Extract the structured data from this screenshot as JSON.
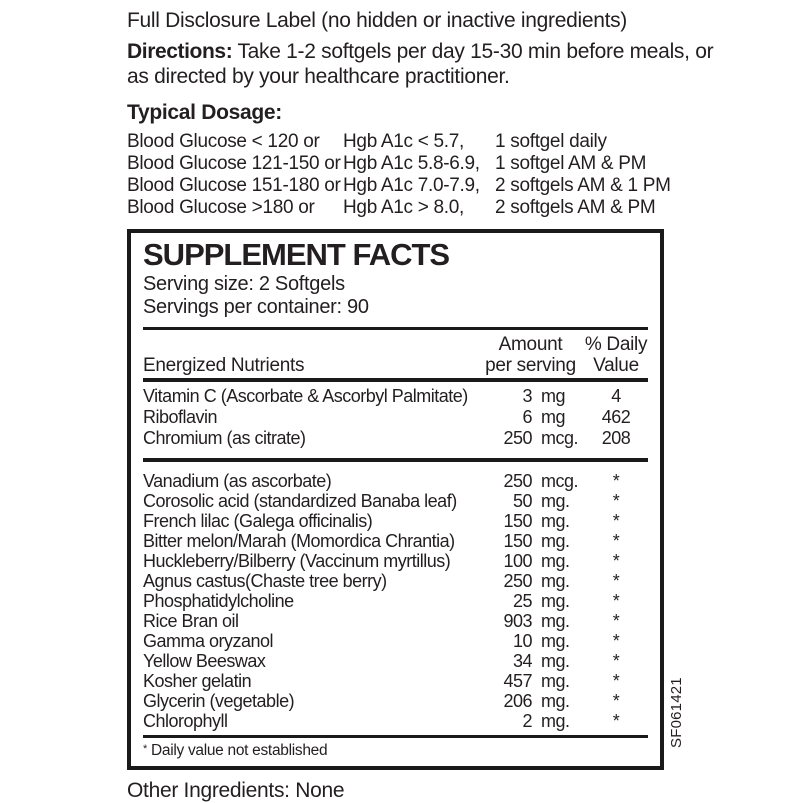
{
  "page": {
    "intro_line": "Full Disclosure Label (no hidden or inactive ingredients)",
    "directions_label": "Directions:",
    "directions_text": " Take 1-2 softgels per day 15-30 min before meals, or as directed by your healthcare practitioner.",
    "typical_dosage_label": "Typical Dosage:",
    "other_ingredients": "Other Ingredients: None"
  },
  "dosage_table": {
    "rows": [
      {
        "glucose": "Blood Glucose < 120 or",
        "hgb": "Hgb A1c < 5.7,",
        "dose": "1 softgel daily"
      },
      {
        "glucose": "Blood Glucose 121-150 or",
        "hgb": "Hgb A1c 5.8-6.9,",
        "dose": "1 softgel AM & PM"
      },
      {
        "glucose": "Blood Glucose 151-180 or",
        "hgb": "Hgb A1c 7.0-7.9,",
        "dose": "2 softgels AM & 1 PM"
      },
      {
        "glucose": "Blood Glucose >180 or",
        "hgb": "Hgb A1c > 8.0,",
        "dose": "2 softgels AM & PM"
      }
    ]
  },
  "supplement_facts": {
    "title": "SUPPLEMENT FACTS",
    "serving_size": "Serving size: 2 Softgels",
    "servings_per_container": "Servings per container:  90",
    "columns": {
      "nutrients": "Energized Nutrients",
      "amount_line1": "Amount",
      "amount_line2": "per serving",
      "dv_line1": "% Daily",
      "dv_line2": "Value"
    },
    "section1": [
      {
        "name": "Vitamin C (Ascorbate & Ascorbyl Palmitate)",
        "amount": "3",
        "unit": "mg",
        "dv": "4"
      },
      {
        "name": "Riboflavin",
        "amount": "6",
        "unit": "mg",
        "dv": "462"
      },
      {
        "name": "Chromium (as citrate)",
        "amount": "250",
        "unit": "mcg.",
        "dv": "208"
      }
    ],
    "section2": [
      {
        "name": "Vanadium (as ascorbate)",
        "amount": "250",
        "unit": "mcg.",
        "dv": "*"
      },
      {
        "name": "Corosolic acid (standardized Banaba leaf)",
        "amount": "50",
        "unit": "mg.",
        "dv": "*"
      },
      {
        "name": "French lilac (Galega officinalis)",
        "amount": "150",
        "unit": "mg.",
        "dv": "*"
      },
      {
        "name": "Bitter melon/Marah (Momordica Chrantia)",
        "amount": "150",
        "unit": "mg.",
        "dv": "*"
      },
      {
        "name": "Huckleberry/Bilberry (Vaccinum myrtillus)",
        "amount": "100",
        "unit": "mg.",
        "dv": "*"
      },
      {
        "name": "Agnus castus(Chaste tree berry)",
        "amount": "250",
        "unit": "mg.",
        "dv": "*"
      },
      {
        "name": "Phosphatidylcholine",
        "amount": "25",
        "unit": "mg.",
        "dv": "*"
      },
      {
        "name": "Rice Bran oil",
        "amount": "903",
        "unit": "mg.",
        "dv": "*"
      },
      {
        "name": "Gamma oryzanol",
        "amount": "10",
        "unit": "mg.",
        "dv": "*"
      },
      {
        "name": "Yellow Beeswax",
        "amount": "34",
        "unit": "mg.",
        "dv": "*"
      },
      {
        "name": "Kosher gelatin",
        "amount": "457",
        "unit": "mg.",
        "dv": "*"
      },
      {
        "name": "Glycerin (vegetable)",
        "amount": "206",
        "unit": "mg.",
        "dv": "*"
      },
      {
        "name": "Chlorophyll",
        "amount": "2",
        "unit": "mg.",
        "dv": "*"
      }
    ],
    "footnote_mark": "*",
    "footnote_text": " Daily value not established",
    "side_code": "SF061421"
  },
  "colors": {
    "text": "#231f20",
    "rule": "#1a1a1a",
    "background": "#ffffff"
  }
}
